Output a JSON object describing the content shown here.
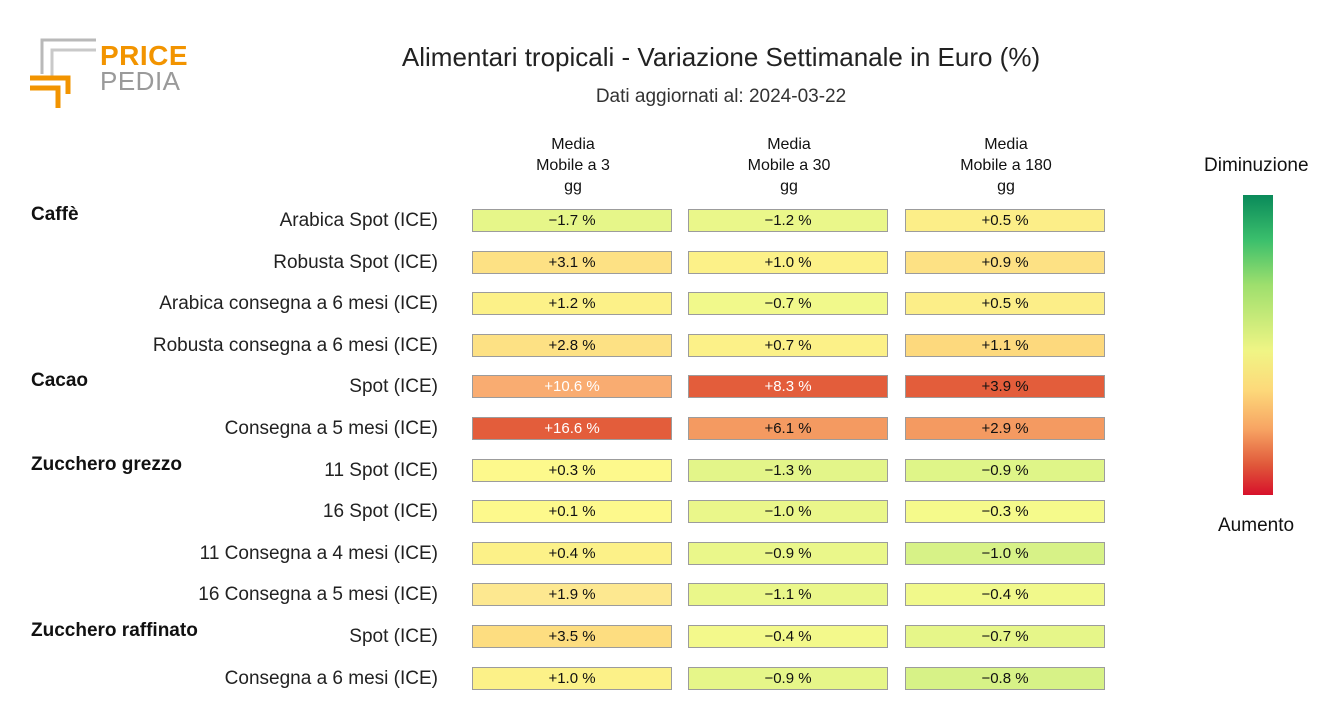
{
  "logo": {
    "line1": "PRICE",
    "line2": "PEDIA",
    "orange": "#f29400",
    "gray": "#9a9a9a"
  },
  "chart_data": {
    "type": "table",
    "title": "Alimentari tropicali - Variazione Settimanale in Euro (%)",
    "subtitle": "Dati aggiornati al: 2024-03-22",
    "columns": [
      "Media\nMobile a 3\ngg",
      "Media\nMobile a 30\ngg",
      "Media\nMobile a 180\ngg"
    ],
    "legend": {
      "top": "Diminuzione",
      "bottom": "Aumento"
    },
    "groups": [
      {
        "name": "Caffè",
        "rows": [
          {
            "label": "Arabica Spot (ICE)",
            "values": [
              -1.7,
              -1.2,
              0.5
            ]
          },
          {
            "label": "Robusta Spot (ICE)",
            "values": [
              3.1,
              1.0,
              0.9
            ]
          },
          {
            "label": "Arabica consegna a 6 mesi (ICE)",
            "values": [
              1.2,
              -0.7,
              0.5
            ]
          },
          {
            "label": "Robusta consegna a 6 mesi (ICE)",
            "values": [
              2.8,
              0.7,
              1.1
            ]
          }
        ]
      },
      {
        "name": "Cacao",
        "rows": [
          {
            "label": "Spot (ICE)",
            "values": [
              10.6,
              8.3,
              3.9
            ]
          },
          {
            "label": "Consegna a 5 mesi (ICE)",
            "values": [
              16.6,
              6.1,
              2.9
            ]
          }
        ]
      },
      {
        "name": "Zucchero grezzo",
        "rows": [
          {
            "label": "11 Spot (ICE)",
            "values": [
              0.3,
              -1.3,
              -0.9
            ]
          },
          {
            "label": "16 Spot (ICE)",
            "values": [
              0.1,
              -1.0,
              -0.3
            ]
          },
          {
            "label": "11 Consegna a 4 mesi (ICE)",
            "values": [
              0.4,
              -0.9,
              -1.0
            ]
          },
          {
            "label": "16 Consegna a 5 mesi (ICE)",
            "values": [
              1.9,
              -1.1,
              -0.4
            ]
          }
        ]
      },
      {
        "name": "Zucchero raffinato",
        "rows": [
          {
            "label": "Spot (ICE)",
            "values": [
              3.5,
              -0.4,
              -0.7
            ]
          },
          {
            "label": "Consegna a 6 mesi (ICE)",
            "values": [
              1.0,
              -0.9,
              -0.8
            ]
          }
        ]
      }
    ],
    "cell_colors": [
      [
        "#e6f689",
        "#eaf78a",
        "#fcee88"
      ],
      [
        "#fde184",
        "#fcf188",
        "#fde184"
      ],
      [
        "#fcf188",
        "#f1f98b",
        "#fcee88"
      ],
      [
        "#fde184",
        "#fcf188",
        "#fdd97d"
      ],
      [
        "#f9ac71",
        "#e35d3b",
        "#e35d3b"
      ],
      [
        "#e35d3b",
        "#f49a61",
        "#f49a61"
      ],
      [
        "#fdf98c",
        "#e3f589",
        "#dff588"
      ],
      [
        "#fdf98c",
        "#eaf78a",
        "#f5fa8b"
      ],
      [
        "#fcf188",
        "#eaf78a",
        "#d7f287"
      ],
      [
        "#fde890",
        "#eaf78a",
        "#f1f98b"
      ],
      [
        "#fddd80",
        "#f3f98b",
        "#e6f689"
      ],
      [
        "#fcf188",
        "#e6f689",
        "#d7f287"
      ]
    ]
  }
}
